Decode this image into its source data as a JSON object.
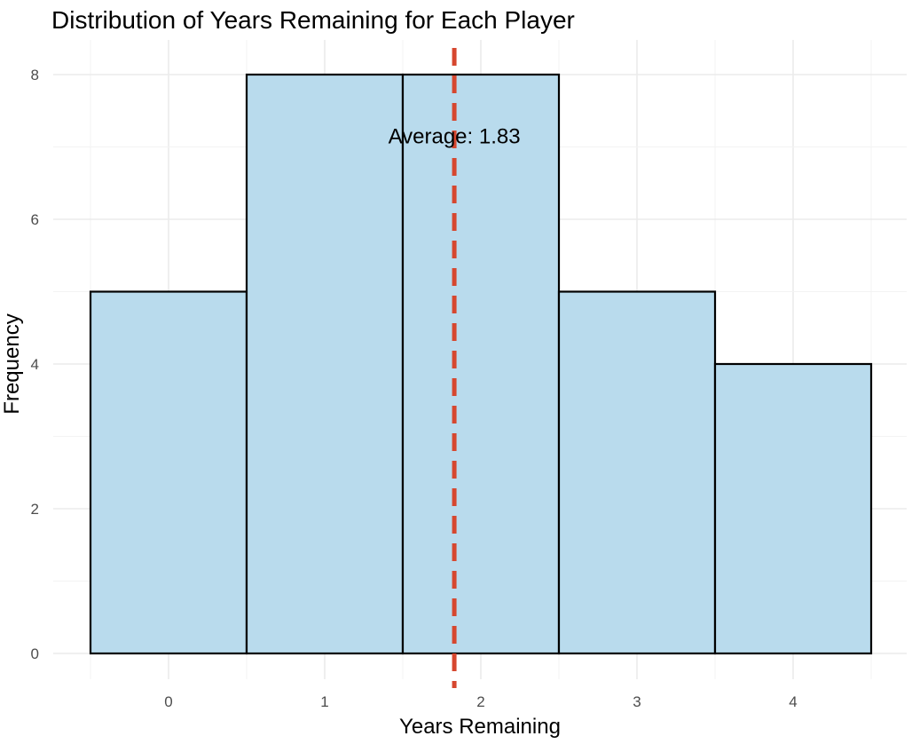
{
  "chart_data": {
    "type": "bar",
    "title": "Distribution of Years Remaining for Each Player",
    "xlabel": "Years Remaining",
    "ylabel": "Frequency",
    "categories": [
      0,
      1,
      2,
      3,
      4
    ],
    "values": [
      5,
      8,
      8,
      5,
      4
    ],
    "bin_width": 1,
    "xlim": [
      -0.75,
      4.75
    ],
    "ylim": [
      0,
      8.3
    ],
    "x_ticks": [
      "0",
      "1",
      "2",
      "3",
      "4"
    ],
    "y_ticks": [
      "0",
      "2",
      "4",
      "6",
      "8"
    ],
    "grid": true,
    "bar_fill": "#b9dbed",
    "bar_outline": "#000000",
    "average": {
      "value": 1.83,
      "label": "Average: 1.83",
      "color": "#d6472f",
      "style": "dashed"
    }
  }
}
